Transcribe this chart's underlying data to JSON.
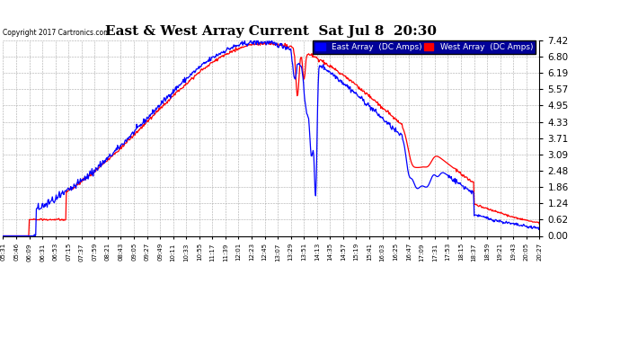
{
  "title": "East & West Array Current  Sat Jul 8  20:30",
  "copyright": "Copyright 2017 Cartronics.com",
  "legend_east": "East Array  (DC Amps)",
  "legend_west": "West Array  (DC Amps)",
  "east_color": "#0000ff",
  "west_color": "#ff0000",
  "bg_color": "#ffffff",
  "plot_bg_color": "#ffffff",
  "grid_color": "#aaaaaa",
  "yticks": [
    0.0,
    0.62,
    1.24,
    1.86,
    2.48,
    3.09,
    3.71,
    4.33,
    4.95,
    5.57,
    6.19,
    6.8,
    7.42
  ],
  "ymax": 7.42,
  "ymin": 0.0,
  "xtick_labels": [
    "05:31",
    "05:46",
    "06:09",
    "06:31",
    "06:53",
    "07:15",
    "07:37",
    "07:59",
    "08:21",
    "08:43",
    "09:05",
    "09:27",
    "09:49",
    "10:11",
    "10:33",
    "10:55",
    "11:17",
    "11:39",
    "12:01",
    "12:23",
    "12:45",
    "13:07",
    "13:29",
    "13:51",
    "14:13",
    "14:35",
    "14:57",
    "15:19",
    "15:41",
    "16:03",
    "16:25",
    "16:47",
    "17:09",
    "17:31",
    "17:53",
    "18:15",
    "18:37",
    "18:59",
    "19:21",
    "19:43",
    "20:05",
    "20:27"
  ]
}
